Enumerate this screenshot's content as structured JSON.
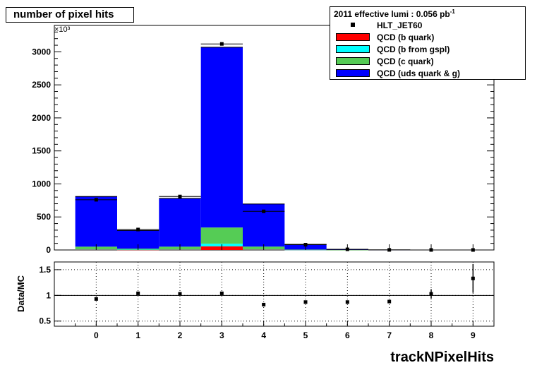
{
  "chart_data": [
    {
      "type": "bar",
      "stacked": true,
      "title": "number of pixel hits",
      "x": [
        0,
        1,
        2,
        3,
        4,
        5,
        6,
        7,
        8,
        9
      ],
      "xlim": [
        -1,
        9.5
      ],
      "ylim": [
        0,
        3400
      ],
      "yticks": [
        0,
        500,
        1000,
        1500,
        2000,
        2500,
        3000
      ],
      "yscale_label": "×10³",
      "series": [
        {
          "name": "QCD (b quark)",
          "color": "#ff0000",
          "values": [
            5,
            2,
            5,
            55,
            6,
            1,
            0,
            0,
            0,
            0
          ]
        },
        {
          "name": "QCD (b from gspl)",
          "color": "#00ffff",
          "values": [
            5,
            3,
            5,
            40,
            5,
            1,
            0,
            0,
            0,
            0
          ]
        },
        {
          "name": "QCD (c quark)",
          "color": "#55cc55",
          "values": [
            40,
            15,
            40,
            245,
            40,
            5,
            1,
            0,
            0,
            0
          ]
        },
        {
          "name": "QCD (uds quark & g)",
          "color": "#0000ff",
          "values": [
            760,
            275,
            730,
            2730,
            645,
            78,
            9,
            1,
            0.3,
            0.1
          ]
        }
      ],
      "data_points": {
        "name": "HLT_JET60",
        "values": [
          760,
          310,
          810,
          3120,
          585,
          80,
          10,
          1,
          0.3,
          0.1
        ]
      },
      "legend_header": "2011 effective lumi : 0.056  pb",
      "legend_header_sup": "-1",
      "legend_position": "top-right",
      "grid": false
    },
    {
      "type": "scatter",
      "ylabel": "Data/MC",
      "xlabel": "trackNPixelHits",
      "xlim": [
        -1,
        9.5
      ],
      "ylim": [
        0.4,
        1.65
      ],
      "yticks": [
        0.5,
        1,
        1.5
      ],
      "xticks": [
        0,
        1,
        2,
        3,
        4,
        5,
        6,
        7,
        8,
        9
      ],
      "x": [
        0,
        1,
        2,
        3,
        4,
        5,
        6,
        7,
        8,
        9
      ],
      "y": [
        0.93,
        1.04,
        1.03,
        1.04,
        0.82,
        0.87,
        0.87,
        0.88,
        1.03,
        1.33
      ],
      "yerr": [
        0.01,
        0.01,
        0.01,
        0.01,
        0.01,
        0.01,
        0.02,
        0.03,
        0.09,
        0.28
      ],
      "grid": true
    }
  ]
}
